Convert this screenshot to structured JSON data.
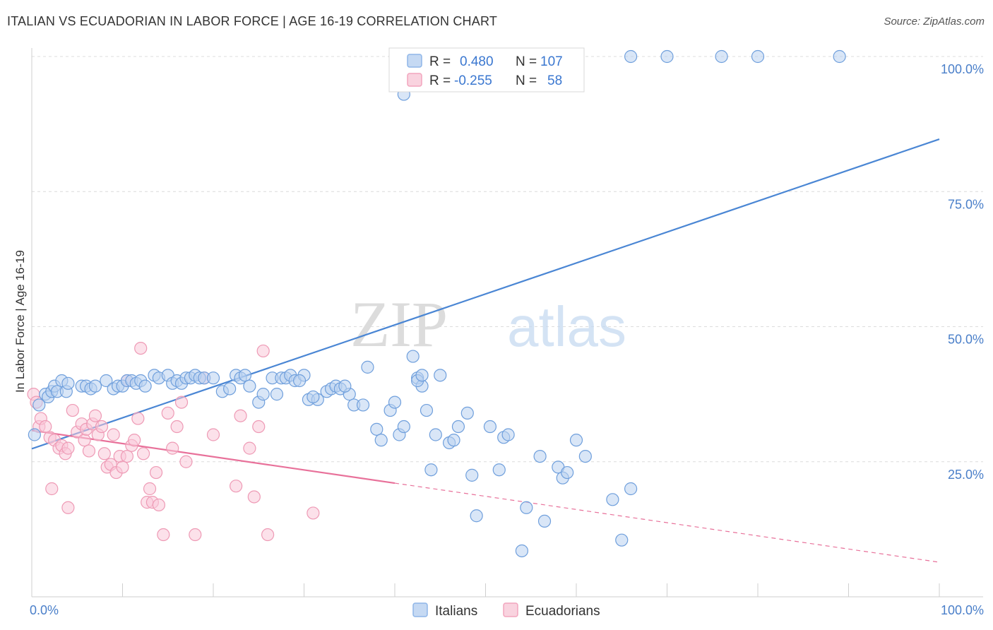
{
  "title": "ITALIAN VS ECUADORIAN IN LABOR FORCE | AGE 16-19 CORRELATION CHART",
  "source": "Source: ZipAtlas.com",
  "watermark": {
    "part1": "ZIP",
    "part2": "atlas"
  },
  "legend_box": {
    "rows": [
      {
        "r_label": "R =",
        "r_value": "0.480",
        "n_label": "N =",
        "n_value": "107",
        "color": "#8fb6e8"
      },
      {
        "r_label": "R =",
        "r_value": "-0.255",
        "n_label": "N =",
        "n_value": "58",
        "color": "#f2a5bd"
      }
    ]
  },
  "bottom_legend": [
    {
      "label": "Italians",
      "color": "#8fb6e8"
    },
    {
      "label": "Ecuadorians",
      "color": "#f2a5bd"
    }
  ],
  "chart_data": {
    "type": "scatter",
    "xlabel": "",
    "ylabel": "In Labor Force | Age 16-19",
    "x_tick_labels": [
      "0.0%",
      "100.0%"
    ],
    "y_tick_labels": [
      "25.0%",
      "50.0%",
      "75.0%",
      "100.0%"
    ],
    "xlim": [
      0,
      100
    ],
    "ylim": [
      0,
      100
    ],
    "grid": true,
    "legend_position": "top-center",
    "series": [
      {
        "name": "Italians",
        "color": "#4a86d4",
        "trend": {
          "x0": 0,
          "y0": 27.4,
          "x1": 100,
          "y1": 84.7,
          "solid_until": 100
        },
        "points": [
          [
            0.3,
            30
          ],
          [
            0.8,
            35.5
          ],
          [
            1.5,
            37.5
          ],
          [
            1.8,
            37
          ],
          [
            2.2,
            38
          ],
          [
            2.5,
            39
          ],
          [
            2.8,
            38
          ],
          [
            3.3,
            40
          ],
          [
            3.8,
            38
          ],
          [
            4,
            39.5
          ],
          [
            5.5,
            39
          ],
          [
            6,
            39
          ],
          [
            6.5,
            38.5
          ],
          [
            7,
            39
          ],
          [
            8.2,
            40
          ],
          [
            9,
            38.5
          ],
          [
            9.5,
            39
          ],
          [
            10,
            39
          ],
          [
            10.5,
            40
          ],
          [
            11,
            40
          ],
          [
            11.5,
            39.5
          ],
          [
            12,
            40
          ],
          [
            12.5,
            39
          ],
          [
            13.5,
            41
          ],
          [
            14,
            40.5
          ],
          [
            15,
            41
          ],
          [
            15.5,
            39.5
          ],
          [
            16,
            40
          ],
          [
            16.5,
            39.5
          ],
          [
            17,
            40.5
          ],
          [
            17.5,
            40.5
          ],
          [
            18,
            41
          ],
          [
            18.5,
            40.5
          ],
          [
            19,
            40.5
          ],
          [
            20,
            40.5
          ],
          [
            21,
            38
          ],
          [
            21.8,
            38.5
          ],
          [
            22.5,
            41
          ],
          [
            23,
            40.5
          ],
          [
            23.5,
            41
          ],
          [
            24,
            39
          ],
          [
            25,
            36
          ],
          [
            25.5,
            37.5
          ],
          [
            26.5,
            40.5
          ],
          [
            27,
            37.5
          ],
          [
            27.5,
            40.5
          ],
          [
            28,
            40.5
          ],
          [
            28.5,
            41
          ],
          [
            29,
            40
          ],
          [
            30,
            41
          ],
          [
            30.5,
            36.5
          ],
          [
            31.5,
            36.5
          ],
          [
            32.5,
            38
          ],
          [
            33,
            38.5
          ],
          [
            33.5,
            39
          ],
          [
            34,
            38.5
          ],
          [
            35,
            37.5
          ],
          [
            35.5,
            35.5
          ],
          [
            36.5,
            35.5
          ],
          [
            37,
            42.5
          ],
          [
            38,
            31
          ],
          [
            38.5,
            29
          ],
          [
            39.5,
            34.5
          ],
          [
            40,
            36
          ],
          [
            40.5,
            30
          ],
          [
            41,
            31.5
          ],
          [
            42,
            44.5
          ],
          [
            42.5,
            40.5
          ],
          [
            43,
            39
          ],
          [
            43.5,
            34.5
          ],
          [
            44,
            23.5
          ],
          [
            44.5,
            30
          ],
          [
            45,
            41
          ],
          [
            46,
            28.5
          ],
          [
            46.5,
            29
          ],
          [
            47,
            31.5
          ],
          [
            48,
            34
          ],
          [
            48.5,
            22.5
          ],
          [
            49,
            15
          ],
          [
            50.5,
            31.5
          ],
          [
            51.5,
            23.5
          ],
          [
            52,
            29.5
          ],
          [
            52.5,
            30
          ],
          [
            54,
            8.5
          ],
          [
            54.5,
            16.5
          ],
          [
            56,
            26
          ],
          [
            56.5,
            14
          ],
          [
            58,
            24
          ],
          [
            58.5,
            22
          ],
          [
            59,
            23
          ],
          [
            60,
            29
          ],
          [
            61,
            26
          ],
          [
            64,
            18
          ],
          [
            65,
            10.5
          ],
          [
            66,
            20
          ],
          [
            42.5,
            40
          ],
          [
            43,
            41
          ],
          [
            34.5,
            39
          ],
          [
            31,
            37
          ],
          [
            29.5,
            40
          ],
          [
            41,
            93
          ],
          [
            46,
            100
          ],
          [
            48,
            100
          ],
          [
            54,
            100
          ],
          [
            66,
            100
          ],
          [
            70,
            100
          ],
          [
            76,
            100
          ],
          [
            80,
            100
          ],
          [
            89,
            100
          ]
        ]
      },
      {
        "name": "Ecuadorians",
        "color": "#e8719a",
        "trend": {
          "x0": 0,
          "y0": 30.8,
          "x1": 100,
          "y1": 6.4,
          "solid_until": 40
        },
        "points": [
          [
            0.2,
            37.5
          ],
          [
            0.5,
            36
          ],
          [
            0.8,
            31.5
          ],
          [
            1,
            33
          ],
          [
            1.5,
            31.5
          ],
          [
            2,
            29.5
          ],
          [
            2.2,
            20
          ],
          [
            2.5,
            29
          ],
          [
            3,
            27.5
          ],
          [
            3.3,
            28
          ],
          [
            3.7,
            26.5
          ],
          [
            4,
            27.5
          ],
          [
            4.5,
            34.5
          ],
          [
            5,
            30.5
          ],
          [
            5.5,
            32
          ],
          [
            5.8,
            29
          ],
          [
            6,
            31
          ],
          [
            6.3,
            27
          ],
          [
            6.7,
            32
          ],
          [
            7,
            33.5
          ],
          [
            7.3,
            30
          ],
          [
            7.7,
            31.5
          ],
          [
            8,
            26.5
          ],
          [
            8.3,
            24
          ],
          [
            8.7,
            24.5
          ],
          [
            9,
            30
          ],
          [
            9.3,
            23
          ],
          [
            9.7,
            26
          ],
          [
            10,
            24
          ],
          [
            10.5,
            26
          ],
          [
            11,
            28
          ],
          [
            11.3,
            29
          ],
          [
            11.7,
            33
          ],
          [
            12,
            46
          ],
          [
            12.3,
            26.5
          ],
          [
            12.7,
            17.5
          ],
          [
            13,
            20
          ],
          [
            13.3,
            17.5
          ],
          [
            13.7,
            23
          ],
          [
            14,
            17
          ],
          [
            14.5,
            11.5
          ],
          [
            15,
            34
          ],
          [
            15.5,
            27.5
          ],
          [
            16,
            31.5
          ],
          [
            16.5,
            36
          ],
          [
            17,
            25
          ],
          [
            18,
            11.5
          ],
          [
            19,
            40.5
          ],
          [
            20,
            30
          ],
          [
            22.5,
            20.5
          ],
          [
            23,
            33.5
          ],
          [
            24,
            27.5
          ],
          [
            24.5,
            18.5
          ],
          [
            25,
            31.5
          ],
          [
            25.5,
            45.5
          ],
          [
            26,
            11.5
          ],
          [
            31,
            15.5
          ],
          [
            4,
            16.5
          ],
          [
            10.5,
            40
          ]
        ]
      }
    ]
  }
}
